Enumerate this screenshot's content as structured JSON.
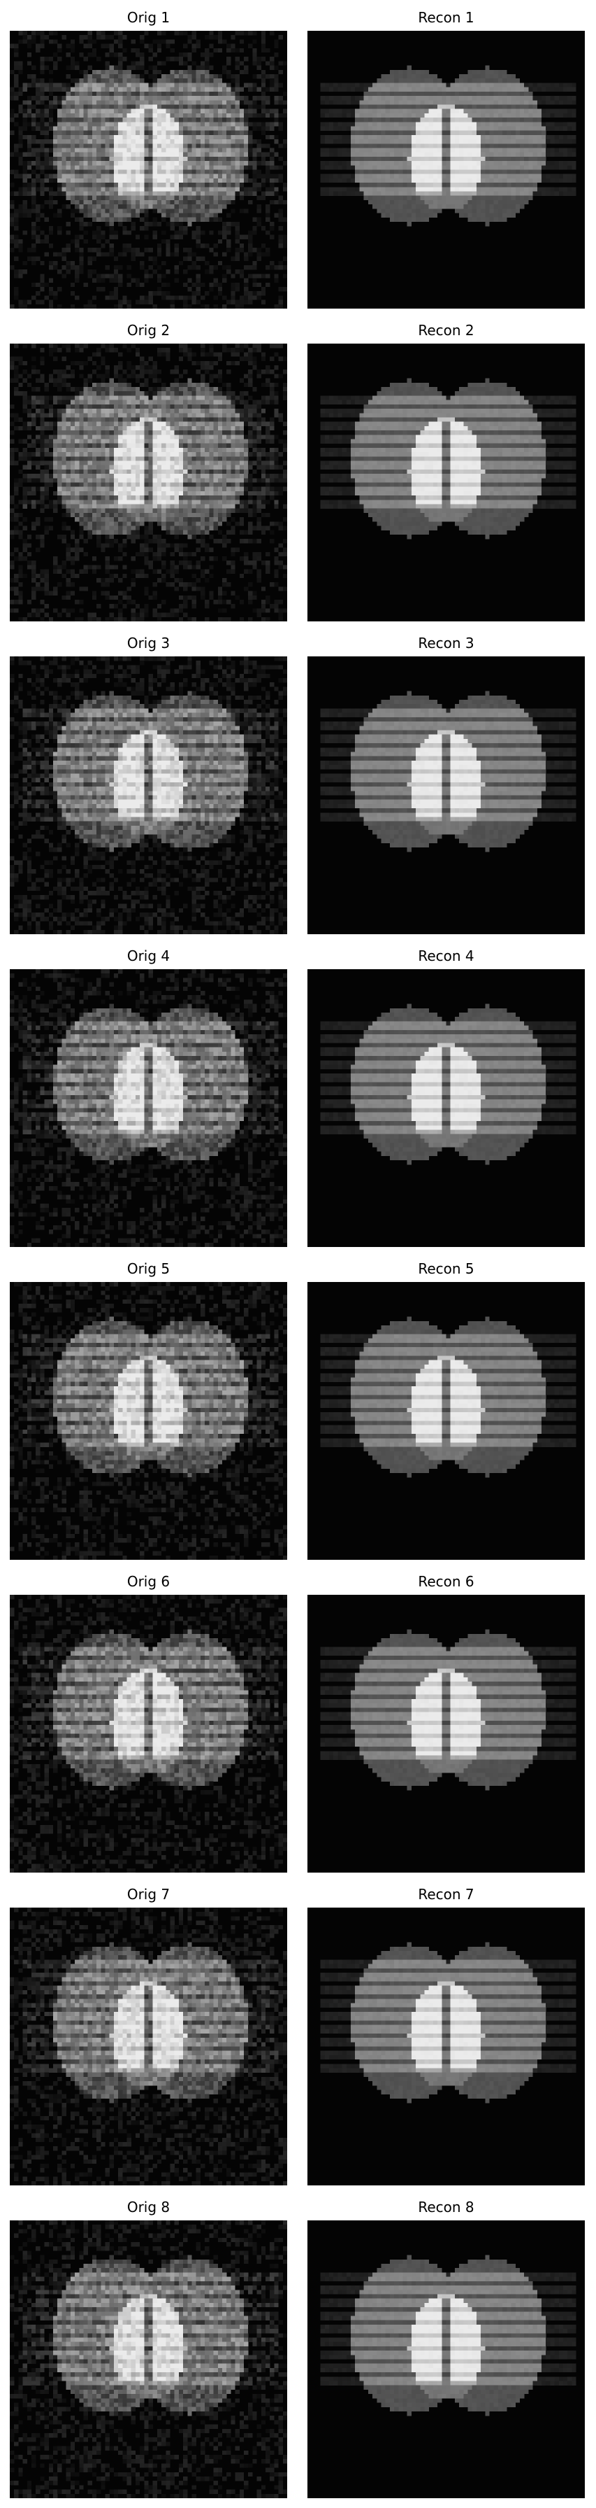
{
  "figure": {
    "background": "#ffffff",
    "rows": [
      {
        "orig_title": "Orig 1",
        "recon_title": "Recon 1"
      },
      {
        "orig_title": "Orig 2",
        "recon_title": "Recon 2"
      },
      {
        "orig_title": "Orig 3",
        "recon_title": "Recon 3"
      },
      {
        "orig_title": "Orig 4",
        "recon_title": "Recon 4"
      },
      {
        "orig_title": "Orig 5",
        "recon_title": "Recon 5"
      },
      {
        "orig_title": "Orig 6",
        "recon_title": "Recon 6"
      },
      {
        "orig_title": "Orig 7",
        "recon_title": "Recon 7"
      },
      {
        "orig_title": "Orig 8",
        "recon_title": "Recon 8"
      }
    ],
    "image_description_colors": {
      "background": "#050505",
      "ellipse": "#5a5a5a",
      "bright_region": "#d9d9d9",
      "stripe": "#9a9a9a"
    }
  }
}
